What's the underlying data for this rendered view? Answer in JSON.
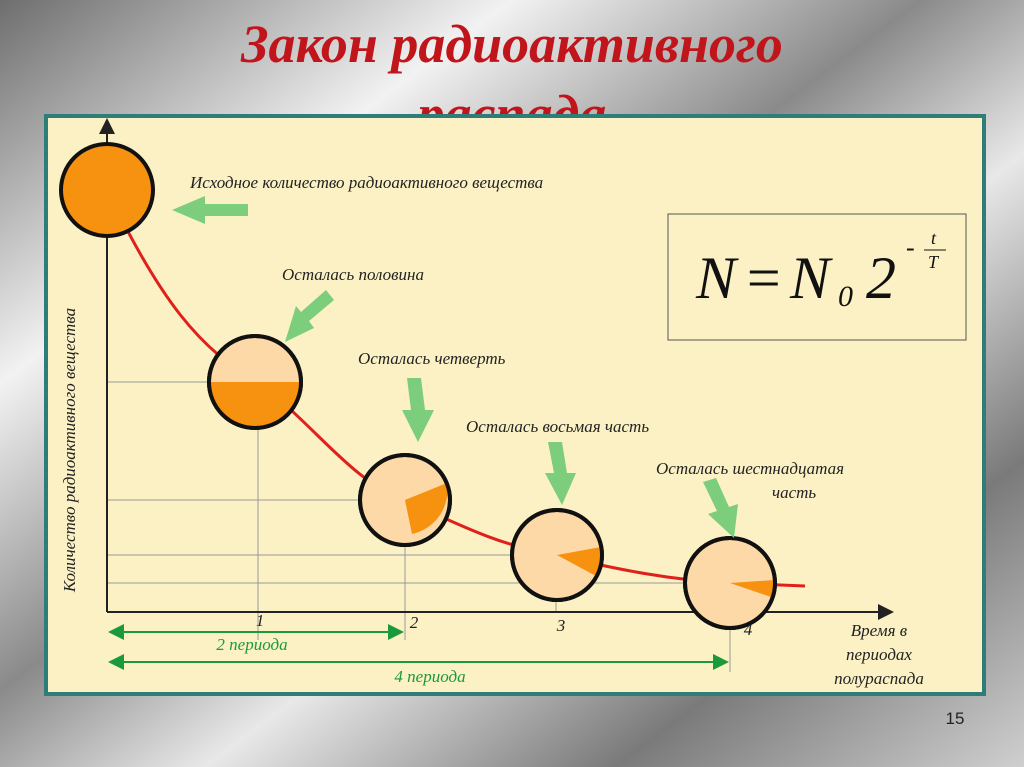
{
  "title": {
    "line1": "Закон радиоактивного",
    "line2": "распада"
  },
  "annotations": [
    "Исходное количество радиоактивного вещества",
    "Осталась половина",
    "Осталась четверть",
    "Осталась восьмая часть",
    "Осталась шестнадцатая",
    "часть"
  ],
  "formula": {
    "lhs": "N",
    "equals": "=",
    "base": "N",
    "subscript": "0",
    "two": "2",
    "minus": "-",
    "numerator": "t",
    "denominator": "T"
  },
  "axis": {
    "y_label": "Количество радиоактивного вещества",
    "x_label": [
      "Время в",
      "периодах",
      "полураспада"
    ],
    "ticks": [
      "1",
      "2",
      "3",
      "4"
    ]
  },
  "spans": [
    "2 периода",
    "4 периода"
  ],
  "page_number": "15"
}
